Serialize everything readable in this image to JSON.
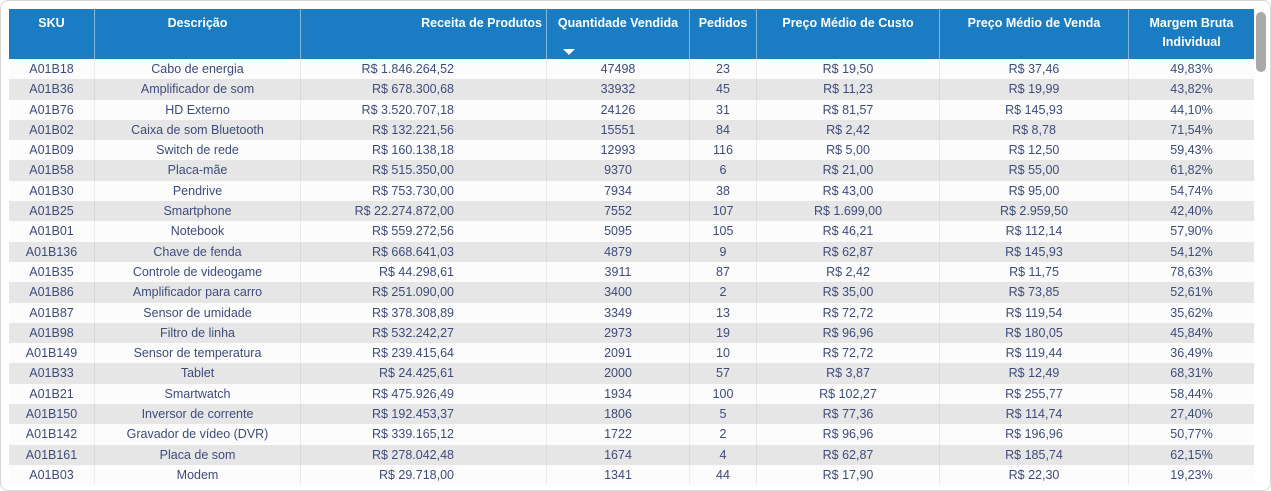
{
  "table": {
    "columns": [
      {
        "key": "sku",
        "label": "SKU"
      },
      {
        "key": "descricao",
        "label": "Descrição"
      },
      {
        "key": "receita",
        "label": "Receita de Produtos"
      },
      {
        "key": "quantidade",
        "label": "Quantidade Vendida",
        "sorted": "descending"
      },
      {
        "key": "pedidos",
        "label": "Pedidos"
      },
      {
        "key": "custo",
        "label": "Preço Médio de Custo"
      },
      {
        "key": "venda",
        "label": "Preço Médio de Venda"
      },
      {
        "key": "margem",
        "label": "Margem Bruta Individual"
      }
    ],
    "sort": {
      "column": "Quantidade Vendida",
      "direction": "descending"
    },
    "rows": [
      [
        "A01B18",
        "Cabo de energia",
        "R$ 1.846.264,52",
        "47498",
        "23",
        "R$ 19,50",
        "R$ 37,46",
        "49,83%"
      ],
      [
        "A01B36",
        "Amplificador de som",
        "R$ 678.300,68",
        "33932",
        "45",
        "R$ 11,23",
        "R$ 19,99",
        "43,82%"
      ],
      [
        "A01B76",
        "HD Externo",
        "R$ 3.520.707,18",
        "24126",
        "31",
        "R$ 81,57",
        "R$ 145,93",
        "44,10%"
      ],
      [
        "A01B02",
        "Caixa de som Bluetooth",
        "R$ 132.221,56",
        "15551",
        "84",
        "R$ 2,42",
        "R$ 8,78",
        "71,54%"
      ],
      [
        "A01B09",
        "Switch de rede",
        "R$ 160.138,18",
        "12993",
        "116",
        "R$ 5,00",
        "R$ 12,50",
        "59,43%"
      ],
      [
        "A01B58",
        "Placa-mãe",
        "R$ 515.350,00",
        "9370",
        "6",
        "R$ 21,00",
        "R$ 55,00",
        "61,82%"
      ],
      [
        "A01B30",
        "Pendrive",
        "R$ 753.730,00",
        "7934",
        "38",
        "R$ 43,00",
        "R$ 95,00",
        "54,74%"
      ],
      [
        "A01B25",
        "Smartphone",
        "R$ 22.274.872,00",
        "7552",
        "107",
        "R$ 1.699,00",
        "R$ 2.959,50",
        "42,40%"
      ],
      [
        "A01B01",
        "Notebook",
        "R$ 559.272,56",
        "5095",
        "105",
        "R$ 46,21",
        "R$ 112,14",
        "57,90%"
      ],
      [
        "A01B136",
        "Chave de fenda",
        "R$ 668.641,03",
        "4879",
        "9",
        "R$ 62,87",
        "R$ 145,93",
        "54,12%"
      ],
      [
        "A01B35",
        "Controle de videogame",
        "R$ 44.298,61",
        "3911",
        "87",
        "R$ 2,42",
        "R$ 11,75",
        "78,63%"
      ],
      [
        "A01B86",
        "Amplificador para carro",
        "R$ 251.090,00",
        "3400",
        "2",
        "R$ 35,00",
        "R$ 73,85",
        "52,61%"
      ],
      [
        "A01B87",
        "Sensor de umidade",
        "R$ 378.308,89",
        "3349",
        "13",
        "R$ 72,72",
        "R$ 119,54",
        "35,62%"
      ],
      [
        "A01B98",
        "Filtro de linha",
        "R$ 532.242,27",
        "2973",
        "19",
        "R$ 96,96",
        "R$ 180,05",
        "45,84%"
      ],
      [
        "A01B149",
        "Sensor de temperatura",
        "R$ 239.415,64",
        "2091",
        "10",
        "R$ 72,72",
        "R$ 119,44",
        "36,49%"
      ],
      [
        "A01B33",
        "Tablet",
        "R$ 24.425,61",
        "2000",
        "57",
        "R$ 3,87",
        "R$ 12,49",
        "68,31%"
      ],
      [
        "A01B21",
        "Smartwatch",
        "R$ 475.926,49",
        "1934",
        "100",
        "R$ 102,27",
        "R$ 255,77",
        "58,44%"
      ],
      [
        "A01B150",
        "Inversor de corrente",
        "R$ 192.453,37",
        "1806",
        "5",
        "R$ 77,36",
        "R$ 114,74",
        "27,40%"
      ],
      [
        "A01B142",
        "Gravador de vídeo (DVR)",
        "R$ 339.165,12",
        "1722",
        "2",
        "R$ 96,96",
        "R$ 196,96",
        "50,77%"
      ],
      [
        "A01B161",
        "Placa de som",
        "R$ 278.042,48",
        "1674",
        "4",
        "R$ 62,87",
        "R$ 185,74",
        "62,15%"
      ],
      [
        "A01B03",
        "Modem",
        "R$ 29.718,00",
        "1341",
        "44",
        "R$ 17,90",
        "R$ 22,30",
        "19,23%"
      ]
    ]
  },
  "colors": {
    "header_bg": "#1a7dc4",
    "header_text": "#ffffff",
    "row_text": "#3e4c7b",
    "row_bg": "#fcfcfc",
    "row_alt_bg": "#e6e6e6",
    "scrollbar_thumb": "#a9a9a9",
    "frame_border": "#d7d7d7"
  }
}
